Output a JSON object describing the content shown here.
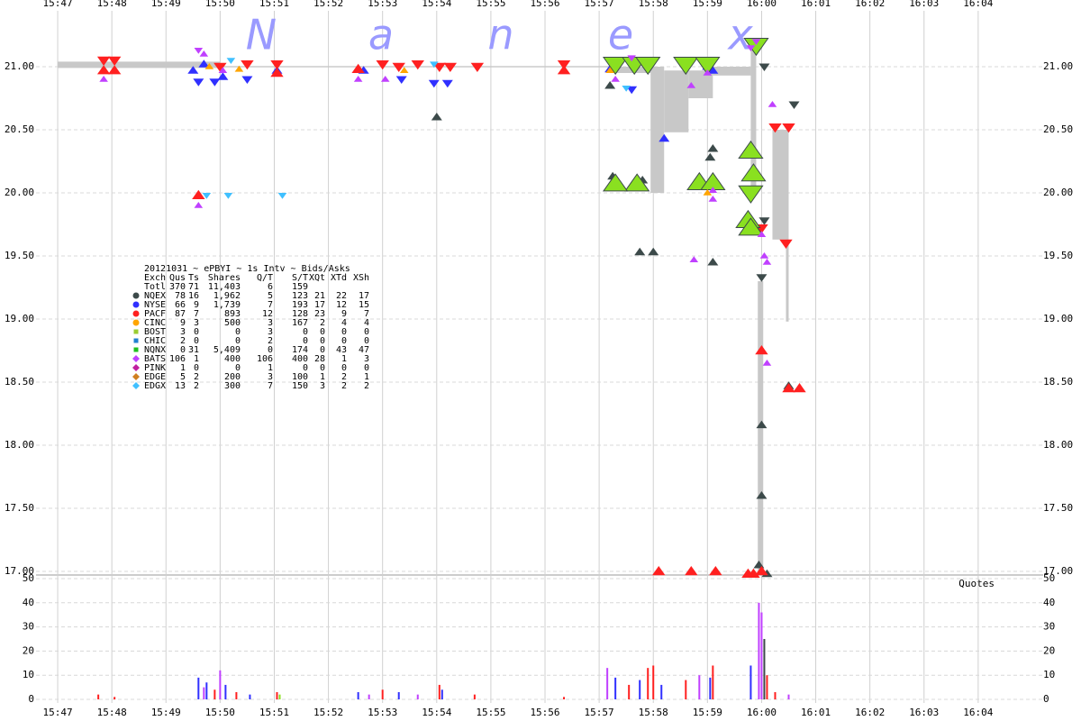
{
  "chart_data": {
    "type": "scatter",
    "watermark": [
      "N",
      "a",
      "n",
      "e",
      "x"
    ],
    "xlim": [
      946.6,
      965.2
    ],
    "xticks": [
      {
        "value": 947,
        "label": "15:47"
      },
      {
        "value": 948,
        "label": "15:48"
      },
      {
        "value": 949,
        "label": "15:49"
      },
      {
        "value": 950,
        "label": "15:50"
      },
      {
        "value": 951,
        "label": "15:51"
      },
      {
        "value": 952,
        "label": "15:52"
      },
      {
        "value": 953,
        "label": "15:53"
      },
      {
        "value": 954,
        "label": "15:54"
      },
      {
        "value": 955,
        "label": "15:55"
      },
      {
        "value": 956,
        "label": "15:56"
      },
      {
        "value": 957,
        "label": "15:57"
      },
      {
        "value": 958,
        "label": "15:58"
      },
      {
        "value": 959,
        "label": "15:59"
      },
      {
        "value": 960,
        "label": "16:00"
      },
      {
        "value": 961,
        "label": "16:01"
      },
      {
        "value": 962,
        "label": "16:02"
      },
      {
        "value": 963,
        "label": "16:03"
      },
      {
        "value": 964,
        "label": "16:04"
      }
    ],
    "ylim": [
      17,
      21.5
    ],
    "yticks": [
      {
        "value": 17,
        "label": "17.00"
      },
      {
        "value": 17.5,
        "label": "17.50"
      },
      {
        "value": 18,
        "label": "18.00"
      },
      {
        "value": 18.5,
        "label": "18.50"
      },
      {
        "value": 19,
        "label": "19.00"
      },
      {
        "value": 19.5,
        "label": "19.50"
      },
      {
        "value": 20,
        "label": "20.00"
      },
      {
        "value": 20.5,
        "label": "20.50"
      },
      {
        "value": 21,
        "label": "21.00"
      }
    ],
    "grid": true,
    "spread": {
      "color": "#c8c8c8",
      "x0": [
        947.0,
        950.0,
        957.2,
        957.95,
        958.2,
        958.65,
        959.1,
        959.8,
        959.93,
        960.2,
        960.45
      ],
      "x1": [
        950.0,
        957.2,
        957.95,
        958.2,
        958.65,
        959.1,
        959.8,
        959.9,
        960.03,
        960.45,
        960.5
      ],
      "low": [
        20.99,
        20.995,
        20.95,
        20.0,
        20.48,
        20.75,
        20.93,
        20.0,
        17.0,
        19.63,
        18.98
      ],
      "high": [
        21.04,
        21.005,
        21.0,
        21.0,
        20.97,
        20.97,
        21.0,
        21.15,
        19.3,
        20.5,
        20.5
      ]
    },
    "series": [
      {
        "color": "#3c4a4a",
        "size": 5,
        "x": [
          954.0,
          957.2,
          957.25,
          957.8,
          957.75,
          958.0,
          959.1,
          959.1,
          959.05,
          960.0,
          960.0,
          960.0,
          959.95,
          960.05,
          960.1,
          960.5,
          960.6,
          960.05
        ],
        "y": [
          20.6,
          20.85,
          20.13,
          20.1,
          19.53,
          19.53,
          20.35,
          19.45,
          20.28,
          19.33,
          18.16,
          17.6,
          17.05,
          21.0,
          16.98,
          18.47,
          20.7,
          19.78
        ],
        "markers": [
          "up",
          "up",
          "up",
          "up",
          "up",
          "up",
          "up",
          "up",
          "up",
          "down",
          "up",
          "up",
          "up",
          "down",
          "up",
          "up",
          "down",
          "down"
        ]
      },
      {
        "color": "#3030ff",
        "size": 5,
        "x": [
          949.5,
          949.6,
          949.7,
          949.9,
          950.05,
          950.5,
          951.05,
          952.65,
          953.35,
          953.95,
          954.2,
          957.2,
          957.6,
          958.2,
          959.1,
          959.0,
          958.7
        ],
        "y": [
          20.97,
          20.88,
          21.02,
          20.88,
          20.92,
          20.9,
          20.97,
          20.97,
          20.9,
          20.87,
          20.87,
          20.98,
          20.82,
          20.43,
          20.97,
          21.0,
          21.05
        ],
        "markers": [
          "up",
          "down",
          "up",
          "down",
          "up",
          "down",
          "up",
          "up",
          "down",
          "down",
          "down",
          "up",
          "down",
          "up",
          "up",
          "up",
          "down"
        ]
      },
      {
        "color": "#ff2020",
        "size": 6,
        "x": [
          947.85,
          948.05,
          947.85,
          948.05,
          949.6,
          950.0,
          950.5,
          951.05,
          951.05,
          952.55,
          953.0,
          953.3,
          953.65,
          954.05,
          954.25,
          954.75,
          956.35,
          956.35,
          958.1,
          958.7,
          959.15,
          959.75,
          959.85,
          960.0,
          960.0,
          960.0,
          960.25,
          960.5,
          960.5,
          960.7,
          960.45
        ],
        "y": [
          21.05,
          21.05,
          20.97,
          20.97,
          19.98,
          21.0,
          21.02,
          21.02,
          20.95,
          20.98,
          21.02,
          21.0,
          21.02,
          21.0,
          21.0,
          21.0,
          21.02,
          20.97,
          17.0,
          17.0,
          17.0,
          16.98,
          16.98,
          19.72,
          18.75,
          17.0,
          20.52,
          20.52,
          18.45,
          18.45,
          19.6
        ],
        "markers": [
          "down",
          "down",
          "up",
          "up",
          "up",
          "down",
          "down",
          "down",
          "up",
          "up",
          "down",
          "down",
          "down",
          "down",
          "down",
          "down",
          "down",
          "up",
          "up",
          "up",
          "up",
          "up",
          "up",
          "down",
          "up",
          "up",
          "down",
          "down",
          "up",
          "up",
          "down"
        ]
      },
      {
        "color": "#8ae020",
        "size": 11,
        "x": [
          957.3,
          957.65,
          957.9,
          957.7,
          957.3,
          958.6,
          958.85,
          959.1,
          959.0,
          959.75,
          959.8,
          959.85,
          959.8,
          959.9,
          959.8
        ],
        "y": [
          21.02,
          21.02,
          21.02,
          20.07,
          20.07,
          21.02,
          20.08,
          20.08,
          21.02,
          19.78,
          20.33,
          20.15,
          20.0,
          21.17,
          19.72
        ],
        "markers": [
          "down",
          "down",
          "down",
          "up",
          "up",
          "down",
          "up",
          "up",
          "down",
          "up",
          "up",
          "up",
          "down",
          "down",
          "up"
        ]
      },
      {
        "color": "#c040ff",
        "size": 4,
        "x": [
          947.85,
          949.6,
          949.7,
          949.6,
          950.05,
          952.55,
          953.05,
          957.3,
          957.6,
          958.7,
          958.75,
          959.1,
          959.1,
          959.0,
          959.8,
          960.0,
          960.05,
          960.1,
          960.1,
          960.2,
          959.9
        ],
        "y": [
          20.9,
          21.13,
          21.1,
          19.9,
          20.97,
          20.9,
          20.9,
          20.9,
          21.07,
          20.85,
          19.47,
          20.02,
          19.95,
          20.95,
          21.15,
          19.67,
          19.5,
          18.65,
          19.45,
          20.7,
          21.2
        ],
        "markers": [
          "up",
          "down",
          "up",
          "up",
          "up",
          "up",
          "up",
          "up",
          "down",
          "up",
          "up",
          "up",
          "up",
          "up",
          "down",
          "up",
          "up",
          "up",
          "up",
          "up",
          "down"
        ]
      },
      {
        "color": "#40c0ff",
        "size": 4,
        "x": [
          949.75,
          950.15,
          951.15,
          953.95,
          957.5,
          950.2
        ],
        "y": [
          19.98,
          19.98,
          19.98,
          21.02,
          20.83,
          21.05
        ],
        "markers": [
          "down",
          "down",
          "down",
          "down",
          "down",
          "down"
        ]
      },
      {
        "color": "#ffa500",
        "size": 4,
        "x": [
          949.8,
          950.35,
          953.4,
          957.2,
          959.0
        ],
        "y": [
          21.0,
          20.98,
          20.97,
          20.97,
          20.0
        ],
        "markers": [
          "up",
          "up",
          "up",
          "up",
          "up"
        ]
      }
    ],
    "quotes": {
      "title": "Quotes",
      "ylim": [
        0,
        50
      ],
      "yticks": [
        0,
        10,
        20,
        30,
        40,
        50
      ],
      "x": [
        947.75,
        948.05,
        949.6,
        949.7,
        949.75,
        949.9,
        950.0,
        950.1,
        950.3,
        950.55,
        951.05,
        951.1,
        952.55,
        952.75,
        953.0,
        953.3,
        953.65,
        954.05,
        954.1,
        954.7,
        956.35,
        957.15,
        957.3,
        957.55,
        957.75,
        957.9,
        958.0,
        958.15,
        958.6,
        958.85,
        959.05,
        959.1,
        959.8,
        959.95,
        960.0,
        960.05,
        960.1,
        960.25,
        960.5
      ],
      "values": [
        2,
        1,
        9,
        5,
        7,
        4,
        12,
        6,
        3,
        2,
        3,
        2,
        3,
        2,
        4,
        3,
        2,
        6,
        4,
        2,
        1,
        13,
        9,
        6,
        8,
        13,
        14,
        6,
        8,
        10,
        9,
        14,
        14,
        40,
        36,
        25,
        10,
        3,
        2
      ],
      "colors": [
        "#ff2020",
        "#ff2020",
        "#3030ff",
        "#c040ff",
        "#3030ff",
        "#ff2020",
        "#c040ff",
        "#3030ff",
        "#ff2020",
        "#3030ff",
        "#ff2020",
        "#8ae020",
        "#3030ff",
        "#c040ff",
        "#ff2020",
        "#3030ff",
        "#c040ff",
        "#ff2020",
        "#3030ff",
        "#ff2020",
        "#ff2020",
        "#c040ff",
        "#3030ff",
        "#ff2020",
        "#3030ff",
        "#ff2020",
        "#ff2020",
        "#3030ff",
        "#ff2020",
        "#c040ff",
        "#3030ff",
        "#ff2020",
        "#3030ff",
        "#c040ff",
        "#c040ff",
        "#3c4a4a",
        "#ff2020",
        "#ff2020",
        "#c040ff"
      ]
    },
    "legend_table": {
      "title": "20121031 ~ ePBYI ~ 1s Intv ~ Bids/Asks",
      "header": [
        "Exch",
        "Qus",
        "Ts",
        "Shares",
        "Q/T",
        "S/T",
        "XQt",
        "XTd",
        "XSh"
      ],
      "rows": [
        [
          "Totl",
          "370",
          "71",
          "11,403",
          "6",
          "159"
        ],
        [
          "NQEX",
          "78",
          "16",
          "1,962",
          "5",
          "123",
          "21",
          "22",
          "17"
        ],
        [
          "NYSE",
          "66",
          "9",
          "1,739",
          "7",
          "193",
          "17",
          "12",
          "15"
        ],
        [
          "PACF",
          "87",
          "7",
          "893",
          "12",
          "128",
          "23",
          "9",
          "7"
        ],
        [
          "CINC",
          "9",
          "3",
          "500",
          "3",
          "167",
          "2",
          "4",
          "4"
        ],
        [
          "BOST",
          "3",
          "0",
          "0",
          "3",
          "0",
          "0",
          "0",
          "0"
        ],
        [
          "CHIC",
          "2",
          "0",
          "0",
          "2",
          "0",
          "0",
          "0",
          "0"
        ],
        [
          "NQNX",
          "0",
          "31",
          "5,409",
          "0",
          "174",
          "0",
          "43",
          "47"
        ],
        [
          "BATS",
          "106",
          "1",
          "400",
          "106",
          "400",
          "28",
          "1",
          "3"
        ],
        [
          "PINK",
          "1",
          "0",
          "0",
          "1",
          "0",
          "0",
          "0",
          "0"
        ],
        [
          "EDGE",
          "5",
          "2",
          "200",
          "3",
          "100",
          "1",
          "2",
          "1"
        ],
        [
          "EDGX",
          "13",
          "2",
          "300",
          "7",
          "150",
          "3",
          "2",
          "2"
        ]
      ],
      "colors": [
        null,
        "#3c4a4a",
        "#3030ff",
        "#ff2020",
        "#ffa500",
        "#9acd32",
        "#2080d0",
        "#20c020",
        "#c040ff",
        "#c020a0",
        "#d08020",
        "#40c0ff"
      ],
      "shapes": [
        null,
        "circle",
        "circle",
        "circle",
        "circle",
        "square",
        "square",
        "square",
        "diamond",
        "diamond",
        "diamond",
        "diamond"
      ]
    }
  }
}
